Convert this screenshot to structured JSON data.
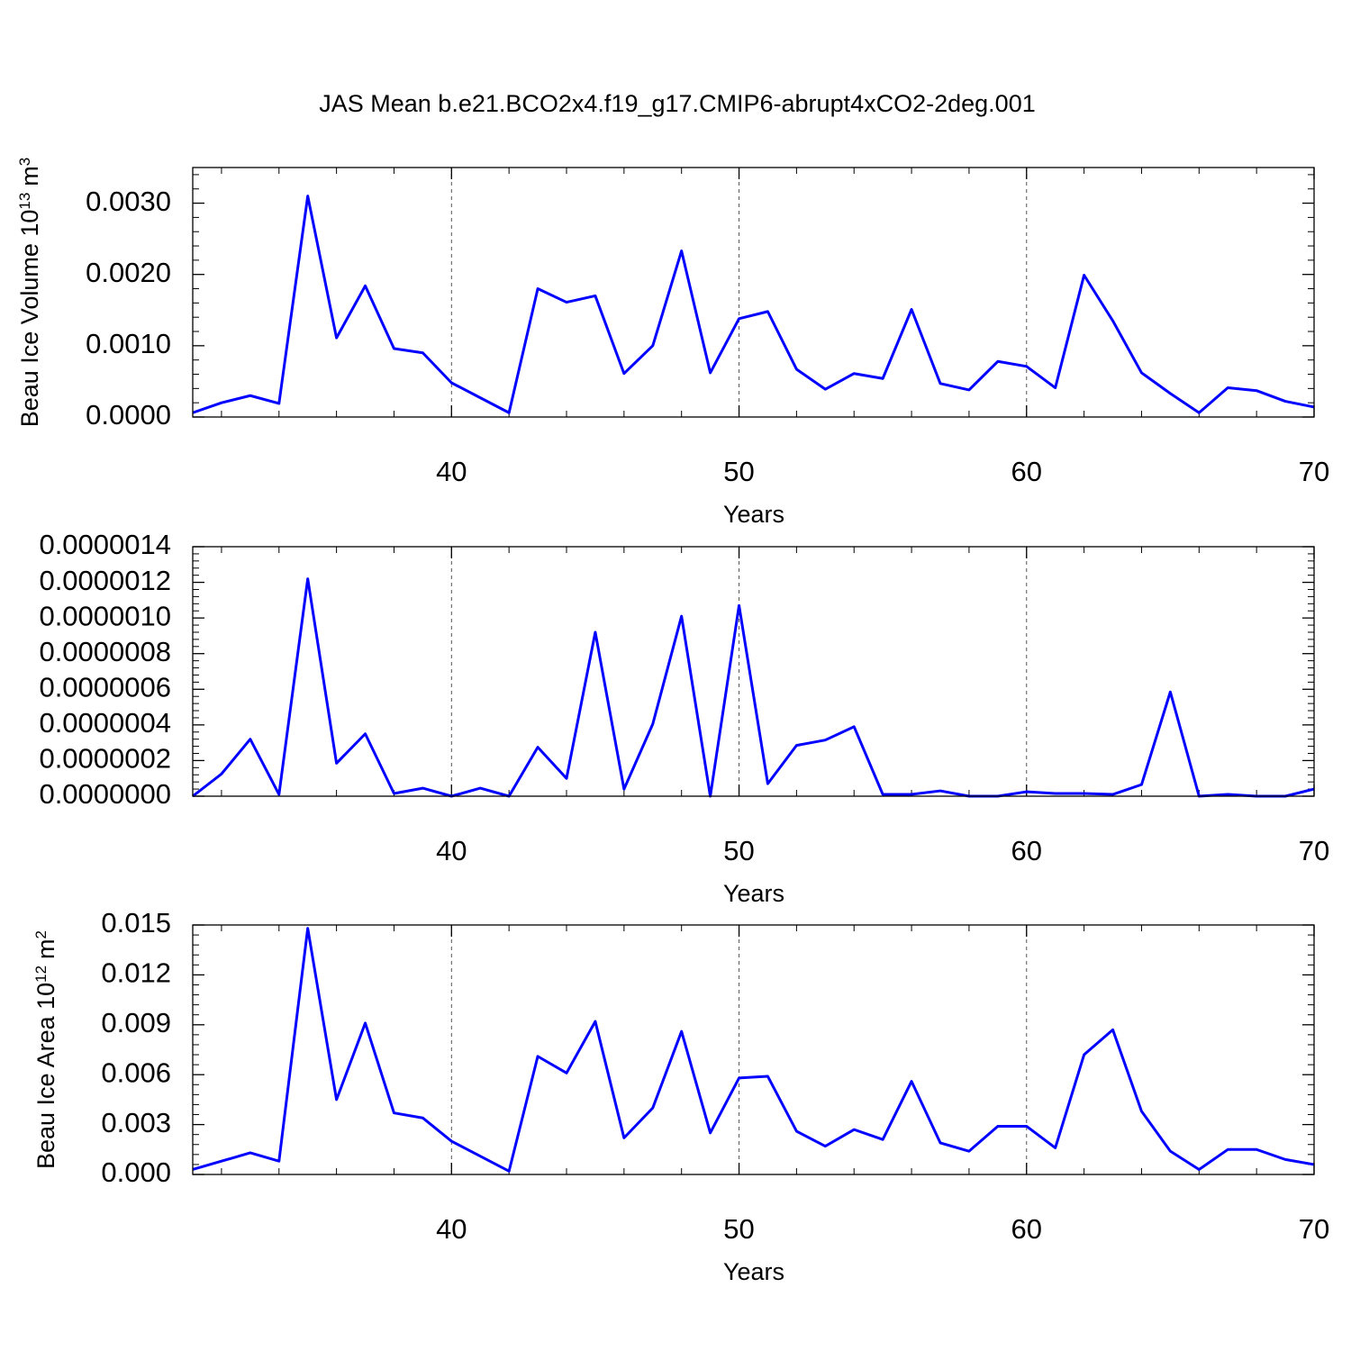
{
  "chart_data": [
    {
      "type": "line",
      "title": "JAS Mean b.e21.BCO2x4.f19_g17.CMIP6-abrupt4xCO2-2deg.001",
      "ylabel": [
        "Beau Ice Volume 10",
        "13",
        "m",
        "3"
      ],
      "xlabel": "Years",
      "color": "#0000ff",
      "x": [
        31,
        32,
        33,
        34,
        35,
        36,
        37,
        38,
        39,
        40,
        41,
        42,
        43,
        44,
        45,
        46,
        47,
        48,
        49,
        50,
        51,
        52,
        53,
        54,
        55,
        56,
        57,
        58,
        59,
        60,
        61,
        62,
        63,
        64,
        65,
        66,
        67,
        68,
        69,
        70
      ],
      "values": [
        6e-05,
        0.0002,
        0.0003,
        0.00019,
        0.0031,
        0.00111,
        0.00184,
        0.00096,
        0.0009,
        0.00048,
        0.00027,
        6e-05,
        0.0018,
        0.00161,
        0.0017,
        0.00061,
        0.001,
        0.00233,
        0.00062,
        0.00138,
        0.00148,
        0.00067,
        0.00039,
        0.00061,
        0.00054,
        0.00151,
        0.00047,
        0.00038,
        0.00078,
        0.00071,
        0.00041,
        0.00199,
        0.00135,
        0.00062,
        0.00033,
        6e-05,
        0.00041,
        0.00037,
        0.00022,
        0.00014
      ],
      "xlim": [
        31,
        70
      ],
      "xticks": [
        40,
        50,
        60,
        70
      ],
      "xgrid": true,
      "ylim": [
        0,
        0.0035
      ],
      "yticks": [
        {
          "value": 0,
          "label": "0.0000"
        },
        {
          "value": 0.001,
          "label": "0.0010"
        },
        {
          "value": 0.002,
          "label": "0.0020"
        },
        {
          "value": 0.003,
          "label": "0.0030"
        }
      ]
    },
    {
      "type": "line",
      "xlabel": "Years",
      "color": "#0000ff",
      "x": [
        31,
        32,
        33,
        34,
        35,
        36,
        37,
        38,
        39,
        40,
        41,
        42,
        43,
        44,
        45,
        46,
        47,
        48,
        49,
        50,
        51,
        52,
        53,
        54,
        55,
        56,
        57,
        58,
        59,
        60,
        61,
        62,
        63,
        64,
        65,
        66,
        67,
        68,
        69,
        70
      ],
      "values": [
        0,
        1.25e-07,
        3.2e-07,
        1e-08,
        1.22e-06,
        1.85e-07,
        3.5e-07,
        1.5e-08,
        4.5e-08,
        0,
        4.5e-08,
        0,
        2.75e-07,
        1e-07,
        9.2e-07,
        4e-08,
        4.05e-07,
        1.01e-06,
        0,
        1.07e-06,
        7e-08,
        2.85e-07,
        3.15e-07,
        3.9e-07,
        1e-08,
        1e-08,
        3e-08,
        0,
        0,
        2.5e-08,
        1.5e-08,
        1.5e-08,
        1e-08,
        6.5e-08,
        5.85e-07,
        0,
        1e-08,
        0,
        0,
        4e-08
      ],
      "xlim": [
        31,
        70
      ],
      "xticks": [
        40,
        50,
        60,
        70
      ],
      "xgrid": true,
      "ylim": [
        0,
        1.4e-06
      ],
      "yticks": [
        {
          "value": 0,
          "label": "0.0000000"
        },
        {
          "value": 2e-07,
          "label": "0.0000002"
        },
        {
          "value": 4e-07,
          "label": "0.0000004"
        },
        {
          "value": 6e-07,
          "label": "0.0000006"
        },
        {
          "value": 8e-07,
          "label": "0.0000008"
        },
        {
          "value": 1e-06,
          "label": "0.0000010"
        },
        {
          "value": 1.2e-06,
          "label": "0.0000012"
        },
        {
          "value": 1.4e-06,
          "label": "0.0000014"
        }
      ]
    },
    {
      "type": "line",
      "ylabel": [
        "Beau Ice Area 10",
        "12",
        "m",
        "2"
      ],
      "xlabel": "Years",
      "color": "#0000ff",
      "x": [
        31,
        32,
        33,
        34,
        35,
        36,
        37,
        38,
        39,
        40,
        41,
        42,
        43,
        44,
        45,
        46,
        47,
        48,
        49,
        50,
        51,
        52,
        53,
        54,
        55,
        56,
        57,
        58,
        59,
        60,
        61,
        62,
        63,
        64,
        65,
        66,
        67,
        68,
        69,
        70
      ],
      "values": [
        0.0003,
        0.0008,
        0.0013,
        0.0008,
        0.0148,
        0.0045,
        0.0091,
        0.0037,
        0.0034,
        0.002,
        0.0011,
        0.0002,
        0.0071,
        0.0061,
        0.0092,
        0.0022,
        0.004,
        0.0086,
        0.0025,
        0.0058,
        0.0059,
        0.0026,
        0.0017,
        0.0027,
        0.0021,
        0.0056,
        0.0019,
        0.0014,
        0.0029,
        0.0029,
        0.0016,
        0.0072,
        0.0087,
        0.0038,
        0.0014,
        0.0003,
        0.0015,
        0.0015,
        0.0009,
        0.0006
      ],
      "xlim": [
        31,
        70
      ],
      "xticks": [
        40,
        50,
        60,
        70
      ],
      "xgrid": true,
      "ylim": [
        0,
        0.015
      ],
      "yticks": [
        {
          "value": 0,
          "label": "0.000"
        },
        {
          "value": 0.003,
          "label": "0.003"
        },
        {
          "value": 0.006,
          "label": "0.006"
        },
        {
          "value": 0.009,
          "label": "0.009"
        },
        {
          "value": 0.012,
          "label": "0.012"
        },
        {
          "value": 0.015,
          "label": "0.015"
        }
      ]
    }
  ]
}
